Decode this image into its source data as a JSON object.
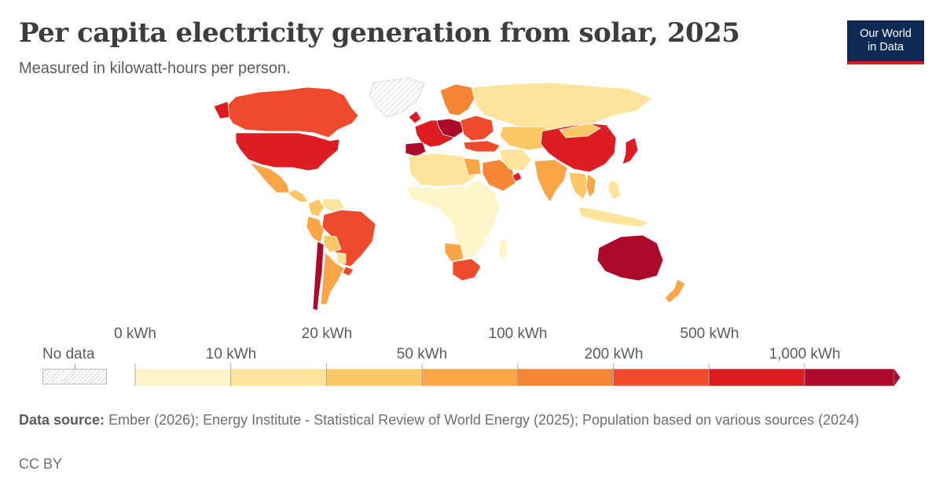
{
  "header": {
    "title": "Per capita electricity generation from solar, 2025",
    "subtitle": "Measured in kilowatt-hours per person."
  },
  "logo": {
    "line1": "Our World",
    "line2": "in Data",
    "bg_color": "#0d2a55",
    "accent_color": "#ce261e"
  },
  "legend": {
    "no_data_label": "No data",
    "top_labels": [
      "0 kWh",
      "20 kWh",
      "100 kWh",
      "500 kWh"
    ],
    "bottom_labels": [
      "10 kWh",
      "50 kWh",
      "200 kWh",
      "1,000 kWh"
    ],
    "bins": [
      {
        "from": 0,
        "to": 10,
        "color": "#fef6c8"
      },
      {
        "from": 10,
        "to": 20,
        "color": "#fde49a"
      },
      {
        "from": 20,
        "to": 50,
        "color": "#fcc866"
      },
      {
        "from": 50,
        "to": 100,
        "color": "#faa547"
      },
      {
        "from": 100,
        "to": 200,
        "color": "#f58634"
      },
      {
        "from": 200,
        "to": 500,
        "color": "#ee4a2c"
      },
      {
        "from": 500,
        "to": 1000,
        "color": "#dc1e24"
      },
      {
        "from": 1000,
        "to": null,
        "color": "#ac0a2a"
      }
    ],
    "no_data_color": "#d6d6d6"
  },
  "footer": {
    "source_label": "Data source:",
    "source_text": "Ember (2026); Energy Institute - Statistical Review of World Energy (2025); Population based on various sources (2024)",
    "license": "CC BY"
  },
  "map": {
    "regions": [
      {
        "name": "Canada",
        "bin": 5
      },
      {
        "name": "United States",
        "bin": 6
      },
      {
        "name": "Greenland",
        "bin": -1
      },
      {
        "name": "Mexico",
        "bin": 3
      },
      {
        "name": "Central America",
        "bin": 2
      },
      {
        "name": "Colombia",
        "bin": 2
      },
      {
        "name": "Venezuela",
        "bin": 1
      },
      {
        "name": "Brazil",
        "bin": 5
      },
      {
        "name": "Peru",
        "bin": 3
      },
      {
        "name": "Bolivia",
        "bin": 2
      },
      {
        "name": "Paraguay",
        "bin": 1
      },
      {
        "name": "Argentina",
        "bin": 3
      },
      {
        "name": "Chile",
        "bin": 7
      },
      {
        "name": "Uruguay",
        "bin": 5
      },
      {
        "name": "Western Europe",
        "bin": 6
      },
      {
        "name": "Spain",
        "bin": 7
      },
      {
        "name": "Netherlands",
        "bin": 7
      },
      {
        "name": "Scandinavia",
        "bin": 4
      },
      {
        "name": "Eastern Europe",
        "bin": 5
      },
      {
        "name": "Russia",
        "bin": 1
      },
      {
        "name": "Kazakhstan",
        "bin": 2
      },
      {
        "name": "Turkey",
        "bin": 5
      },
      {
        "name": "Saudi Arabia",
        "bin": 4
      },
      {
        "name": "United Arab Emirates",
        "bin": 6
      },
      {
        "name": "Iran",
        "bin": 1
      },
      {
        "name": "India",
        "bin": 3
      },
      {
        "name": "China",
        "bin": 6
      },
      {
        "name": "Japan",
        "bin": 6
      },
      {
        "name": "Mongolia",
        "bin": 2
      },
      {
        "name": "Southeast Asia",
        "bin": 2
      },
      {
        "name": "Vietnam",
        "bin": 3
      },
      {
        "name": "Indonesia",
        "bin": 1
      },
      {
        "name": "Philippines",
        "bin": 1
      },
      {
        "name": "Australia",
        "bin": 7
      },
      {
        "name": "New Zealand",
        "bin": 3
      },
      {
        "name": "North Africa",
        "bin": 1
      },
      {
        "name": "Egypt",
        "bin": 3
      },
      {
        "name": "Sub-Saharan Africa",
        "bin": 0
      },
      {
        "name": "Namibia",
        "bin": 3
      },
      {
        "name": "South Africa",
        "bin": 5
      },
      {
        "name": "Madagascar",
        "bin": 0
      }
    ]
  }
}
